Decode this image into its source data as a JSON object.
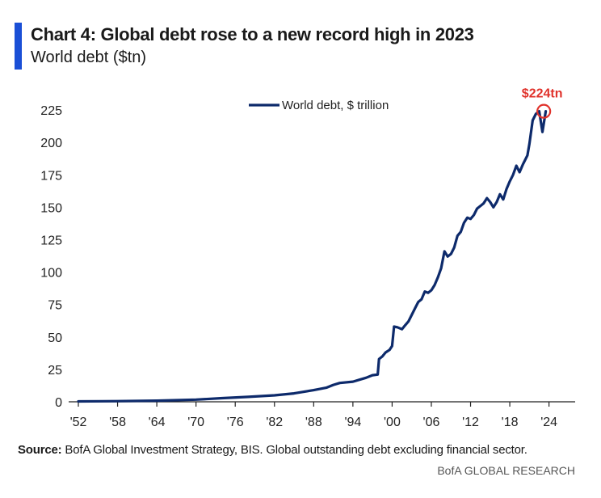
{
  "header": {
    "title": "Chart 4: Global debt rose to a new record high in 2023",
    "subtitle": "World debt ($tn)"
  },
  "footer": {
    "source_label": "Source:",
    "source_text": " BofA Global Investment Strategy, BIS. Global outstanding debt excluding financial sector.",
    "brand": "BofA GLOBAL RESEARCH"
  },
  "colors": {
    "line": "#0d2a6b",
    "accent_bar": "#1a4fd6",
    "annotation": "#e0322b",
    "axis": "#222222"
  },
  "chart_data": {
    "type": "line",
    "title": "Chart 4: Global debt rose to a new record high in 2023",
    "subtitle": "World debt ($tn)",
    "xlabel": "",
    "ylabel": "",
    "xlim": [
      1952,
      2028
    ],
    "ylim": [
      0,
      235
    ],
    "grid": false,
    "legend": {
      "position": "top-center",
      "entries": [
        "World debt, $ trillion"
      ]
    },
    "x_tick_labels": [
      "'52",
      "'58",
      "'64",
      "'70",
      "'76",
      "'82",
      "'88",
      "'94",
      "'00",
      "'06",
      "'12",
      "'18",
      "'24"
    ],
    "x_tick_values": [
      1952,
      1958,
      1964,
      1970,
      1976,
      1982,
      1988,
      1994,
      2000,
      2006,
      2012,
      2018,
      2024
    ],
    "y_tick_values": [
      0,
      25,
      50,
      75,
      100,
      125,
      150,
      175,
      200,
      225
    ],
    "annotation": {
      "text": "$224tn",
      "x": 2023.2,
      "y": 224
    },
    "series": [
      {
        "name": "World debt, $ trillion",
        "x": [
          1952,
          1958,
          1964,
          1970,
          1974,
          1978,
          1982,
          1985,
          1988,
          1990,
          1991,
          1992,
          1994,
          1995,
          1996,
          1997,
          1997.8,
          1998,
          1998.5,
          1999,
          1999.6,
          2000,
          2000.3,
          2000.8,
          2001.5,
          2002,
          2002.5,
          2003,
          2003.5,
          2004,
          2004.5,
          2005,
          2005.5,
          2006,
          2006.5,
          2007,
          2007.5,
          2008,
          2008.5,
          2009,
          2009.5,
          2010,
          2010.5,
          2011,
          2011.5,
          2012,
          2012.5,
          2013,
          2013.5,
          2014,
          2014.5,
          2015,
          2015.5,
          2016,
          2016.5,
          2017,
          2017.5,
          2018,
          2018.5,
          2019,
          2019.5,
          2020,
          2020.3,
          2020.7,
          2021,
          2021.5,
          2022,
          2022.5,
          2023,
          2023.5
        ],
        "values": [
          0.3,
          0.5,
          0.9,
          1.7,
          2.8,
          3.8,
          5.0,
          6.5,
          9.0,
          11.0,
          13.0,
          14.5,
          15.5,
          17.0,
          18.5,
          20.5,
          21.0,
          33.0,
          35.0,
          38.0,
          40.0,
          43.0,
          58.0,
          57.5,
          56.0,
          59.0,
          62.0,
          67.0,
          72.0,
          77.0,
          79.0,
          85.0,
          84.0,
          86.0,
          90.0,
          96.0,
          103.0,
          116.0,
          112.0,
          114.0,
          119.0,
          128.0,
          131.0,
          138.0,
          142.0,
          141.0,
          144.0,
          149.0,
          151.0,
          153.0,
          157.0,
          154.0,
          150.0,
          154.0,
          160.0,
          156.0,
          164.0,
          170.0,
          175.0,
          182.0,
          177.0,
          183.0,
          186.0,
          190.0,
          199.0,
          217.0,
          222.0,
          224.0,
          208.0,
          224.0
        ]
      }
    ]
  }
}
